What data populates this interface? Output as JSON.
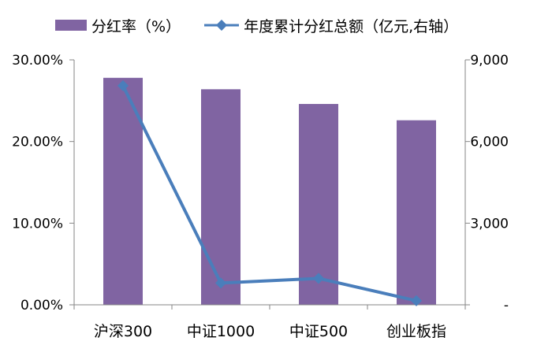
{
  "chart_data": {
    "type": "bar",
    "categories": [
      "沪深300",
      "中证1000",
      "中证500",
      "创业板指"
    ],
    "series": [
      {
        "name": "分红率（%）",
        "type": "bar",
        "axis": "left",
        "values": [
          27.8,
          26.4,
          24.6,
          22.6
        ],
        "color": "#8064A2"
      },
      {
        "name": "年度累计分红总额（亿元,右轴）",
        "type": "line",
        "axis": "right",
        "values": [
          8050,
          800,
          970,
          150
        ],
        "color": "#4A7EBB"
      }
    ],
    "y_left": {
      "ticks": [
        "0.00%",
        "10.00%",
        "20.00%",
        "30.00%"
      ],
      "tick_values": [
        0,
        10,
        20,
        30
      ],
      "ylim": [
        0,
        30
      ]
    },
    "y_right": {
      "ticks": [
        "-",
        "3,000",
        "6,000",
        "9,000"
      ],
      "tick_values": [
        0,
        3000,
        6000,
        9000
      ],
      "ylim": [
        0,
        9000
      ]
    },
    "legend_position": "top",
    "grid": false
  }
}
